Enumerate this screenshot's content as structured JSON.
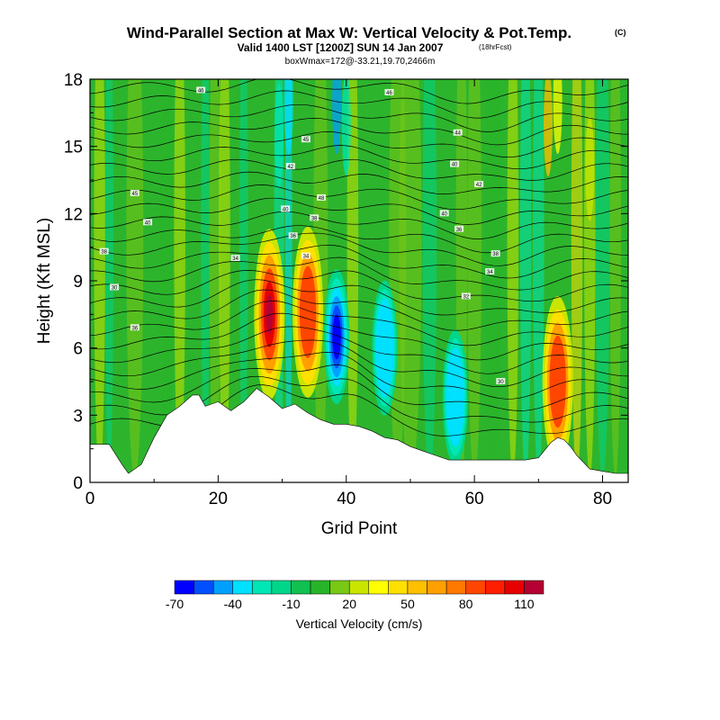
{
  "chart_data": {
    "type": "heatmap",
    "title": "Wind-Parallel Section at Max W: Vertical Velocity & Pot.Temp.",
    "title_mark": "(C)",
    "subtitle": "Valid 1400 LST [1200Z] SUN 14 Jan 2007",
    "subtitle_note": "(18hrFcst)",
    "subtitle2": "boxWmax=172@-33.21,19.70,2466m",
    "xlabel": "Grid Point",
    "ylabel": "Height (Kft MSL)",
    "xlim": [
      0,
      84
    ],
    "ylim": [
      0,
      18
    ],
    "xticks": [
      0,
      20,
      40,
      60,
      80
    ],
    "yticks": [
      0,
      3,
      6,
      9,
      12,
      15,
      18
    ],
    "colorbar": {
      "label": "Vertical Velocity (cm/s)",
      "tick_labels": [
        "-70",
        "-40",
        "-10",
        "20",
        "50",
        "80",
        "110"
      ],
      "tick_values": [
        -70,
        -40,
        -10,
        20,
        50,
        80,
        110
      ],
      "levels": [
        -70,
        -60,
        -50,
        -40,
        -30,
        -20,
        -10,
        0,
        10,
        20,
        30,
        40,
        50,
        60,
        70,
        80,
        90,
        100,
        110,
        120
      ],
      "colors": [
        "#0000ff",
        "#0050ff",
        "#00a0ff",
        "#00e0ff",
        "#00e6b4",
        "#00d68a",
        "#10c050",
        "#28b428",
        "#78c814",
        "#c8e600",
        "#ffff00",
        "#ffe000",
        "#ffc000",
        "#ffa000",
        "#ff7800",
        "#ff4600",
        "#ff1e00",
        "#e60000",
        "#b40032"
      ]
    },
    "updrafts": [
      {
        "x": 28,
        "y": 7.5,
        "peak": 110
      },
      {
        "x": 34,
        "y": 7.6,
        "peak": 90
      },
      {
        "x": 73,
        "y": 4.5,
        "peak": 90
      },
      {
        "x": 38.5,
        "y": 6.5,
        "peak": -70
      },
      {
        "x": 46,
        "y": 6.0,
        "peak": -35
      },
      {
        "x": 57,
        "y": 3.8,
        "peak": -30
      }
    ],
    "terrain": {
      "x": [
        0,
        3,
        5,
        6,
        8,
        10,
        12,
        14,
        16,
        17,
        18,
        20,
        22,
        24,
        26,
        28,
        30,
        32,
        34,
        36,
        38,
        40,
        42,
        44,
        46,
        48,
        50,
        52,
        54,
        56,
        58,
        60,
        62,
        64,
        66,
        68,
        70,
        72,
        73,
        74,
        75,
        76,
        78,
        80,
        82,
        84
      ],
      "height_kft": [
        1.7,
        1.7,
        0.8,
        0.4,
        0.8,
        2.0,
        3.0,
        3.4,
        3.9,
        3.9,
        3.4,
        3.6,
        3.2,
        3.6,
        4.2,
        3.8,
        3.3,
        3.5,
        3.1,
        2.8,
        2.6,
        2.6,
        2.5,
        2.3,
        2.0,
        1.9,
        1.6,
        1.4,
        1.2,
        1.0,
        1.0,
        1.0,
        1.0,
        1.0,
        1.0,
        1.0,
        1.1,
        1.8,
        2.0,
        1.9,
        1.6,
        1.2,
        0.6,
        0.5,
        0.4,
        0.4
      ]
    },
    "theta_contours": {
      "levels": [
        32,
        34,
        36,
        38,
        40,
        42,
        44,
        46,
        48,
        50,
        52,
        54,
        56,
        58,
        60,
        62,
        64,
        66,
        68,
        70,
        72,
        74,
        76
      ],
      "labels": [
        {
          "text": "30",
          "x": 3.8,
          "y": 8.7
        },
        {
          "text": "36",
          "x": 7,
          "y": 6.9
        },
        {
          "text": "38",
          "x": 2.2,
          "y": 10.3
        },
        {
          "text": "40",
          "x": 9,
          "y": 11.6
        },
        {
          "text": "45",
          "x": 7,
          "y": 12.9
        },
        {
          "text": "34",
          "x": 22.7,
          "y": 10.0
        },
        {
          "text": "36",
          "x": 31.7,
          "y": 11.0
        },
        {
          "text": "38",
          "x": 35,
          "y": 11.8
        },
        {
          "text": "40",
          "x": 30.5,
          "y": 12.2
        },
        {
          "text": "42",
          "x": 31.3,
          "y": 14.1
        },
        {
          "text": "45",
          "x": 33.7,
          "y": 15.3
        },
        {
          "text": "48",
          "x": 36.1,
          "y": 12.7
        },
        {
          "text": "34",
          "x": 33.7,
          "y": 10.1
        },
        {
          "text": "46",
          "x": 17.3,
          "y": 17.5
        },
        {
          "text": "46",
          "x": 46.7,
          "y": 17.4
        },
        {
          "text": "44",
          "x": 57.4,
          "y": 15.6
        },
        {
          "text": "40",
          "x": 56.9,
          "y": 14.2
        },
        {
          "text": "40",
          "x": 55.3,
          "y": 12.0
        },
        {
          "text": "42",
          "x": 60.7,
          "y": 13.3
        },
        {
          "text": "36",
          "x": 57.6,
          "y": 11.3
        },
        {
          "text": "38",
          "x": 63.3,
          "y": 10.2
        },
        {
          "text": "34",
          "x": 62.4,
          "y": 9.4
        },
        {
          "text": "32",
          "x": 58.7,
          "y": 8.3
        },
        {
          "text": "30",
          "x": 64.1,
          "y": 4.5
        }
      ]
    }
  }
}
